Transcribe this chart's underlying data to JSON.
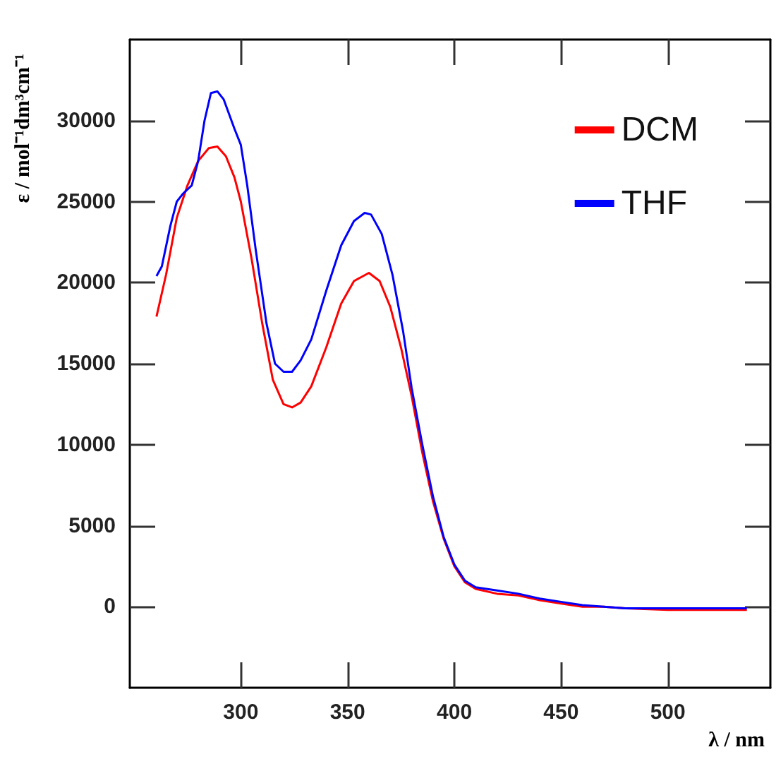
{
  "chart_data": {
    "type": "line",
    "xlabel": "λ / nm",
    "ylabel": "ε / mol⁻¹dm³cm⁻¹",
    "xlim": [
      248,
      548
    ],
    "xticks": [
      300,
      350,
      400,
      450,
      500
    ],
    "ylim": [
      -5000,
      35000
    ],
    "yticks": [
      0,
      5000,
      10000,
      15000,
      20000,
      25000,
      30000
    ],
    "grid": false,
    "legend": "top right",
    "marker": "none",
    "line_style": "solid",
    "series": [
      {
        "name": "DCM",
        "color": "#ff0000",
        "x": [
          260.5,
          265,
          270,
          275,
          280,
          285,
          289,
          293,
          297,
          300,
          305,
          310,
          315,
          320,
          324,
          328,
          333,
          340,
          347,
          353,
          360,
          365,
          370,
          375,
          380,
          385,
          390,
          395,
          400,
          405,
          410,
          420,
          430,
          440,
          450,
          460,
          470,
          480,
          500,
          520,
          537
        ],
        "values": [
          17900,
          20500,
          24000,
          26000,
          27500,
          28300,
          28400,
          27800,
          26500,
          25000,
          21500,
          17500,
          14000,
          12500,
          12300,
          12600,
          13600,
          16000,
          18700,
          20100,
          20600,
          20100,
          18500,
          16000,
          13000,
          9500,
          6500,
          4200,
          2500,
          1500,
          1100,
          800,
          700,
          400,
          200,
          0,
          0,
          -100,
          -200,
          -200,
          -200
        ]
      },
      {
        "name": "THF",
        "color": "#0000ff",
        "x": [
          260.5,
          263,
          267,
          270,
          273,
          277,
          280,
          283,
          286,
          289,
          292,
          297,
          300,
          303,
          307,
          312,
          316,
          320,
          324,
          328,
          333,
          340,
          347,
          353,
          358,
          361,
          366,
          371,
          376,
          380,
          385,
          390,
          395,
          400,
          405,
          410,
          420,
          430,
          440,
          450,
          460,
          470,
          480,
          500,
          520,
          537
        ],
        "values": [
          20400,
          21000,
          23500,
          25000,
          25500,
          26000,
          27500,
          30000,
          31700,
          31800,
          31300,
          29500,
          28500,
          26000,
          22000,
          17500,
          15000,
          14500,
          14500,
          15200,
          16500,
          19500,
          22300,
          23800,
          24300,
          24200,
          23000,
          20500,
          17000,
          13500,
          10000,
          6800,
          4300,
          2600,
          1600,
          1200,
          1000,
          800,
          500,
          300,
          100,
          0,
          -100,
          -100,
          -100,
          -100
        ]
      }
    ]
  }
}
